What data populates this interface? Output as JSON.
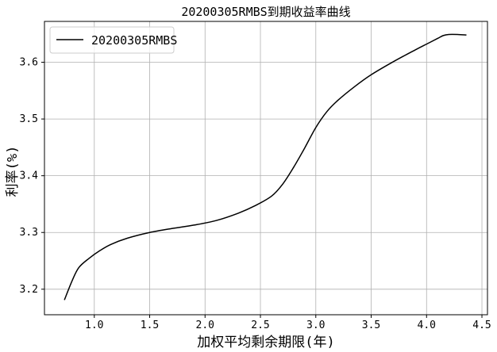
{
  "chart_data": {
    "type": "line",
    "title": "20200305RMBS到期收益率曲线",
    "xlabel": "加权平均剩余期限(年)",
    "ylabel": "利率(%)",
    "xlim": [
      0.55,
      4.55
    ],
    "ylim": [
      3.155,
      3.672
    ],
    "xticks": [
      "1.0",
      "1.5",
      "2.0",
      "2.5",
      "3.0",
      "3.5",
      "4.0",
      "4.5"
    ],
    "yticks": [
      "3.2",
      "3.3",
      "3.4",
      "3.5",
      "3.6"
    ],
    "grid": true,
    "legend_position": "top-left",
    "series": [
      {
        "name": "20200305RMBS",
        "color": "#000000",
        "x": [
          0.73,
          0.8,
          0.86,
          0.95,
          1.05,
          1.15,
          1.3,
          1.5,
          1.7,
          1.9,
          2.1,
          2.3,
          2.45,
          2.6,
          2.7,
          2.8,
          2.9,
          3.0,
          3.1,
          3.2,
          3.35,
          3.5,
          3.7,
          3.9,
          4.0,
          4.1,
          4.15,
          4.2,
          4.28,
          4.36
        ],
        "values": [
          3.181,
          3.215,
          3.238,
          3.254,
          3.268,
          3.279,
          3.29,
          3.3,
          3.307,
          3.313,
          3.321,
          3.334,
          3.347,
          3.364,
          3.385,
          3.415,
          3.449,
          3.485,
          3.513,
          3.533,
          3.557,
          3.578,
          3.601,
          3.622,
          3.632,
          3.642,
          3.647,
          3.649,
          3.649,
          3.648
        ]
      }
    ]
  }
}
